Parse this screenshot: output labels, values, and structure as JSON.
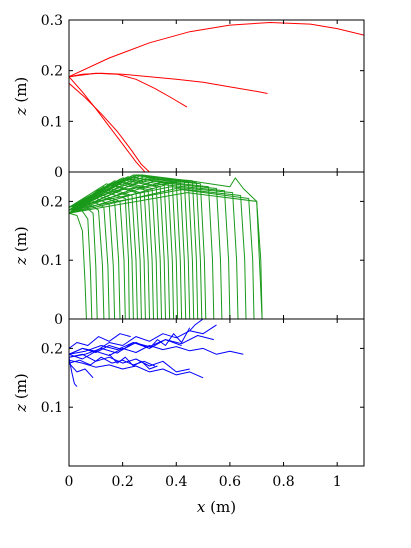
{
  "chart_data": [
    {
      "type": "line",
      "panel": "top",
      "xlim": [
        0,
        1.1
      ],
      "ylim": [
        0,
        0.3
      ],
      "yticks": [
        0,
        0.1,
        0.2,
        0.3
      ],
      "ytick_labels": [
        "0",
        "0.1",
        "0.2",
        "0.3"
      ],
      "ylabel_var": "z",
      "ylabel_unit": "(m)",
      "color": "#ff0000",
      "series": [
        {
          "x": [
            0,
            0.15,
            0.3,
            0.45,
            0.6,
            0.75,
            0.9,
            1.0,
            1.1
          ],
          "y": [
            0.188,
            0.225,
            0.255,
            0.277,
            0.29,
            0.295,
            0.292,
            0.283,
            0.27
          ]
        },
        {
          "x": [
            0,
            0.05,
            0.12,
            0.2,
            0.3,
            0.4,
            0.5,
            0.6,
            0.7,
            0.74
          ],
          "y": [
            0.188,
            0.193,
            0.195,
            0.193,
            0.188,
            0.183,
            0.177,
            0.168,
            0.159,
            0.155
          ]
        },
        {
          "x": [
            0,
            0.1,
            0.18,
            0.25,
            0.32,
            0.38,
            0.44
          ],
          "y": [
            0.188,
            0.195,
            0.193,
            0.183,
            0.165,
            0.147,
            0.128
          ]
        },
        {
          "x": [
            0,
            0.05,
            0.1,
            0.15,
            0.2,
            0.25,
            0.3
          ],
          "y": [
            0.188,
            0.158,
            0.125,
            0.09,
            0.055,
            0.02,
            -0.01
          ]
        },
        {
          "x": [
            0,
            0.06,
            0.12,
            0.18,
            0.23,
            0.27,
            0.31
          ],
          "y": [
            0.175,
            0.147,
            0.115,
            0.08,
            0.045,
            0.015,
            -0.005
          ]
        }
      ]
    },
    {
      "type": "line",
      "panel": "middle",
      "xlim": [
        0,
        1.1
      ],
      "ylim": [
        0,
        0.25
      ],
      "yticks": [
        0,
        0.1,
        0.2
      ],
      "ytick_labels": [
        "0",
        "0.1",
        "0.2"
      ],
      "ylabel_var": "z",
      "ylabel_unit": "(m)",
      "color": "#1a9a1a",
      "series": [
        {
          "x": [
            0,
            0.03,
            0.05,
            0.06,
            0.065
          ],
          "y": [
            0.18,
            0.176,
            0.15,
            0.06,
            0
          ]
        },
        {
          "x": [
            0,
            0.04,
            0.07,
            0.08,
            0.085
          ],
          "y": [
            0.185,
            0.19,
            0.17,
            0.08,
            0
          ]
        },
        {
          "x": [
            0,
            0.05,
            0.09,
            0.1,
            0.105
          ],
          "y": [
            0.18,
            0.195,
            0.18,
            0.09,
            0
          ]
        },
        {
          "x": [
            0,
            0.06,
            0.11,
            0.125,
            0.13
          ],
          "y": [
            0.19,
            0.2,
            0.185,
            0.09,
            0
          ]
        },
        {
          "x": [
            0,
            0.07,
            0.13,
            0.145,
            0.15
          ],
          "y": [
            0.18,
            0.205,
            0.19,
            0.09,
            0
          ]
        },
        {
          "x": [
            0,
            0.08,
            0.15,
            0.165,
            0.17
          ],
          "y": [
            0.185,
            0.21,
            0.195,
            0.09,
            0
          ]
        },
        {
          "x": [
            0,
            0.09,
            0.17,
            0.185,
            0.19
          ],
          "y": [
            0.18,
            0.212,
            0.2,
            0.1,
            0
          ]
        },
        {
          "x": [
            0,
            0.1,
            0.19,
            0.205,
            0.21
          ],
          "y": [
            0.19,
            0.215,
            0.2,
            0.1,
            0
          ]
        },
        {
          "x": [
            0,
            0.11,
            0.21,
            0.222,
            0.225
          ],
          "y": [
            0.18,
            0.22,
            0.205,
            0.1,
            0
          ]
        },
        {
          "x": [
            0,
            0.12,
            0.22,
            0.235,
            0.24
          ],
          "y": [
            0.185,
            0.222,
            0.21,
            0.1,
            0
          ]
        },
        {
          "x": [
            0,
            0.13,
            0.235,
            0.25,
            0.255
          ],
          "y": [
            0.18,
            0.225,
            0.21,
            0.1,
            0
          ]
        },
        {
          "x": [
            0,
            0.14,
            0.25,
            0.265,
            0.27
          ],
          "y": [
            0.19,
            0.23,
            0.215,
            0.1,
            0
          ]
        },
        {
          "x": [
            0,
            0.15,
            0.265,
            0.28,
            0.285
          ],
          "y": [
            0.18,
            0.23,
            0.215,
            0.1,
            0
          ]
        },
        {
          "x": [
            0,
            0.16,
            0.28,
            0.295,
            0.3
          ],
          "y": [
            0.185,
            0.232,
            0.22,
            0.1,
            0
          ]
        },
        {
          "x": [
            0,
            0.17,
            0.295,
            0.31,
            0.315
          ],
          "y": [
            0.18,
            0.235,
            0.22,
            0.1,
            0
          ]
        },
        {
          "x": [
            0,
            0.18,
            0.31,
            0.325,
            0.33
          ],
          "y": [
            0.19,
            0.235,
            0.222,
            0.1,
            0
          ]
        },
        {
          "x": [
            0,
            0.19,
            0.325,
            0.34,
            0.345
          ],
          "y": [
            0.18,
            0.238,
            0.225,
            0.1,
            0
          ]
        },
        {
          "x": [
            0,
            0.2,
            0.34,
            0.355,
            0.36
          ],
          "y": [
            0.185,
            0.24,
            0.225,
            0.1,
            0
          ]
        },
        {
          "x": [
            0,
            0.21,
            0.355,
            0.37,
            0.375
          ],
          "y": [
            0.18,
            0.24,
            0.228,
            0.1,
            0
          ]
        },
        {
          "x": [
            0,
            0.22,
            0.37,
            0.385,
            0.39
          ],
          "y": [
            0.19,
            0.242,
            0.23,
            0.1,
            0
          ]
        },
        {
          "x": [
            0,
            0.23,
            0.385,
            0.4,
            0.405
          ],
          "y": [
            0.18,
            0.242,
            0.23,
            0.1,
            0
          ]
        },
        {
          "x": [
            0,
            0.24,
            0.4,
            0.415,
            0.42
          ],
          "y": [
            0.185,
            0.245,
            0.232,
            0.1,
            0
          ]
        },
        {
          "x": [
            0,
            0.25,
            0.415,
            0.43,
            0.435
          ],
          "y": [
            0.18,
            0.245,
            0.235,
            0.1,
            0
          ]
        },
        {
          "x": [
            0,
            0.26,
            0.43,
            0.445,
            0.45
          ],
          "y": [
            0.19,
            0.245,
            0.235,
            0.1,
            0
          ]
        },
        {
          "x": [
            0,
            0.27,
            0.445,
            0.46,
            0.465
          ],
          "y": [
            0.18,
            0.245,
            0.235,
            0.1,
            0
          ]
        },
        {
          "x": [
            0,
            0.28,
            0.46,
            0.475,
            0.48
          ],
          "y": [
            0.185,
            0.242,
            0.235,
            0.1,
            0
          ]
        },
        {
          "x": [
            0,
            0.29,
            0.475,
            0.49,
            0.495
          ],
          "y": [
            0.18,
            0.24,
            0.232,
            0.1,
            0
          ]
        },
        {
          "x": [
            0,
            0.3,
            0.49,
            0.505,
            0.51
          ],
          "y": [
            0.19,
            0.238,
            0.23,
            0.1,
            0
          ]
        },
        {
          "x": [
            0,
            0.32,
            0.52,
            0.535,
            0.54
          ],
          "y": [
            0.18,
            0.235,
            0.225,
            0.1,
            0
          ]
        },
        {
          "x": [
            0,
            0.34,
            0.55,
            0.565,
            0.57
          ],
          "y": [
            0.185,
            0.232,
            0.222,
            0.1,
            0
          ]
        },
        {
          "x": [
            0,
            0.36,
            0.58,
            0.595,
            0.6
          ],
          "y": [
            0.18,
            0.228,
            0.218,
            0.1,
            0
          ]
        },
        {
          "x": [
            0,
            0.38,
            0.61,
            0.625,
            0.63
          ],
          "y": [
            0.19,
            0.225,
            0.215,
            0.1,
            0
          ]
        },
        {
          "x": [
            0,
            0.4,
            0.64,
            0.655,
            0.66
          ],
          "y": [
            0.18,
            0.222,
            0.21,
            0.1,
            0
          ]
        },
        {
          "x": [
            0,
            0.42,
            0.67,
            0.685,
            0.69
          ],
          "y": [
            0.185,
            0.22,
            0.205,
            0.1,
            0
          ]
        },
        {
          "x": [
            0,
            0.44,
            0.7,
            0.715,
            0.72
          ],
          "y": [
            0.18,
            0.215,
            0.2,
            0.1,
            0
          ]
        },
        {
          "x": [
            0,
            0.2,
            0.45,
            0.6,
            0.62,
            0.65,
            0.7,
            0.72
          ],
          "y": [
            0.18,
            0.22,
            0.235,
            0.225,
            0.24,
            0.222,
            0.2,
            0
          ]
        }
      ]
    },
    {
      "type": "line",
      "panel": "bottom",
      "xlim": [
        0,
        1.1
      ],
      "ylim": [
        0,
        0.25
      ],
      "yticks": [
        0.1,
        0.2
      ],
      "ytick_labels": [
        "0.1",
        "0.2"
      ],
      "xticks": [
        0,
        0.2,
        0.4,
        0.6,
        0.8,
        1
      ],
      "xtick_labels": [
        "0",
        "0.2",
        "0.4",
        "0.6",
        "0.8",
        "1"
      ],
      "xlabel_var": "x",
      "xlabel_unit": "(m)",
      "ylabel_var": "z",
      "ylabel_unit": "(m)",
      "color": "#0000ff",
      "series": [
        {
          "x": [
            0,
            0.05,
            0.1,
            0.15,
            0.2,
            0.25,
            0.3
          ],
          "y": [
            0.19,
            0.2,
            0.193,
            0.205,
            0.198,
            0.21,
            0.2
          ]
        },
        {
          "x": [
            0,
            0.06,
            0.12,
            0.18,
            0.24,
            0.3,
            0.36,
            0.42
          ],
          "y": [
            0.185,
            0.19,
            0.2,
            0.192,
            0.21,
            0.2,
            0.215,
            0.205
          ]
        },
        {
          "x": [
            0,
            0.05,
            0.1,
            0.15,
            0.2,
            0.25,
            0.3,
            0.35,
            0.4,
            0.45,
            0.5,
            0.55,
            0.6,
            0.65
          ],
          "y": [
            0.19,
            0.182,
            0.195,
            0.188,
            0.2,
            0.193,
            0.205,
            0.198,
            0.203,
            0.196,
            0.2,
            0.19,
            0.195,
            0.19
          ]
        },
        {
          "x": [
            0,
            0.04,
            0.08,
            0.12,
            0.16,
            0.2,
            0.24,
            0.28,
            0.32
          ],
          "y": [
            0.175,
            0.18,
            0.172,
            0.185,
            0.175,
            0.18,
            0.172,
            0.178,
            0.17
          ]
        },
        {
          "x": [
            0,
            0.05,
            0.1,
            0.15,
            0.2,
            0.25,
            0.3,
            0.35,
            0.4,
            0.45,
            0.5
          ],
          "y": [
            0.18,
            0.175,
            0.168,
            0.172,
            0.165,
            0.17,
            0.16,
            0.165,
            0.155,
            0.16,
            0.15
          ]
        },
        {
          "x": [
            0,
            0.05,
            0.1,
            0.15,
            0.2,
            0.25,
            0.3,
            0.35,
            0.4,
            0.45,
            0.5,
            0.55
          ],
          "y": [
            0.19,
            0.2,
            0.195,
            0.21,
            0.205,
            0.22,
            0.212,
            0.225,
            0.218,
            0.23,
            0.225,
            0.24
          ]
        },
        {
          "x": [
            0,
            0.05,
            0.1,
            0.15,
            0.2,
            0.25,
            0.3,
            0.35,
            0.4,
            0.45
          ],
          "y": [
            0.185,
            0.19,
            0.178,
            0.185,
            0.175,
            0.182,
            0.17,
            0.178,
            0.16,
            0.165
          ]
        },
        {
          "x": [
            0,
            0.03,
            0.07,
            0.11,
            0.15,
            0.19,
            0.23
          ],
          "y": [
            0.2,
            0.21,
            0.205,
            0.22,
            0.212,
            0.225,
            0.22
          ]
        },
        {
          "x": [
            0,
            0.03,
            0.06,
            0.09
          ],
          "y": [
            0.175,
            0.16,
            0.165,
            0.15
          ]
        },
        {
          "x": [
            0,
            0.06,
            0.12,
            0.18,
            0.24,
            0.3,
            0.36,
            0.42,
            0.48,
            0.54
          ],
          "y": [
            0.19,
            0.195,
            0.205,
            0.198,
            0.21,
            0.203,
            0.215,
            0.208,
            0.222,
            0.215
          ]
        },
        {
          "x": [
            0.0,
            0.01,
            0.02,
            0.03
          ],
          "y": [
            0.185,
            0.16,
            0.14,
            0.135
          ]
        },
        {
          "x": [
            0.3,
            0.33,
            0.36,
            0.39,
            0.42,
            0.45
          ],
          "y": [
            0.2,
            0.215,
            0.205,
            0.225,
            0.21,
            0.235
          ]
        },
        {
          "x": [
            0.45,
            0.47,
            0.5
          ],
          "y": [
            0.23,
            0.24,
            0.25
          ]
        },
        {
          "x": [
            0.15,
            0.18,
            0.21,
            0.24,
            0.27,
            0.3,
            0.33
          ],
          "y": [
            0.19,
            0.175,
            0.185,
            0.17,
            0.178,
            0.165,
            0.17
          ]
        }
      ]
    }
  ]
}
